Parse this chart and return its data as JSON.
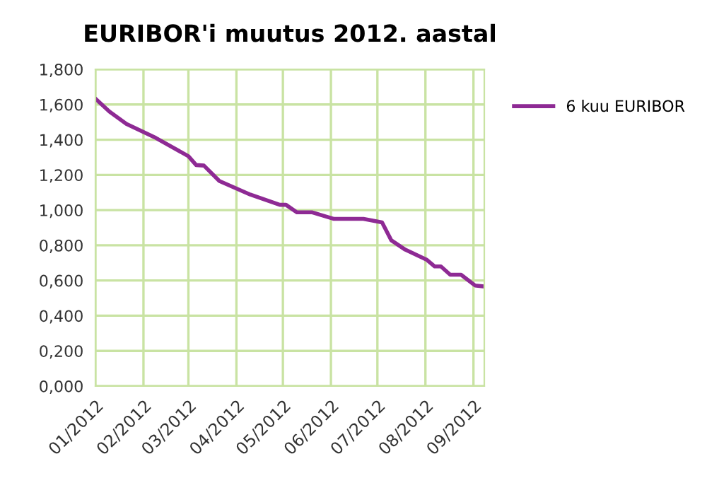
{
  "chart_data": {
    "type": "line",
    "title": "EURIBOR'i muutus 2012. aastal",
    "x": [
      "2012-01-01",
      "2012-01-10",
      "2012-01-21",
      "2012-02-09",
      "2012-03-01",
      "2012-03-06",
      "2012-03-11",
      "2012-03-21",
      "2012-04-10",
      "2012-04-29",
      "2012-05-03",
      "2012-05-10",
      "2012-05-20",
      "2012-06-03",
      "2012-06-22",
      "2012-07-04",
      "2012-07-10",
      "2012-07-19",
      "2012-08-02",
      "2012-08-07",
      "2012-08-11",
      "2012-08-17",
      "2012-08-24",
      "2012-09-02",
      "2012-09-08"
    ],
    "series": [
      {
        "name": "6 kuu EURIBOR",
        "color": "#8e2a94",
        "values": [
          1.633,
          1.56,
          1.49,
          1.41,
          1.306,
          1.256,
          1.253,
          1.165,
          1.088,
          1.03,
          1.03,
          0.987,
          0.987,
          0.95,
          0.95,
          0.93,
          0.828,
          0.775,
          0.717,
          0.68,
          0.68,
          0.633,
          0.633,
          0.572,
          0.566
        ]
      }
    ],
    "xlim": [
      "2012-01-01",
      "2012-09-08"
    ],
    "xticks": [
      {
        "value": "2012-01-01",
        "label": "01/2012"
      },
      {
        "value": "2012-02-01",
        "label": "02/2012"
      },
      {
        "value": "2012-03-01",
        "label": "03/2012"
      },
      {
        "value": "2012-04-01",
        "label": "04/2012"
      },
      {
        "value": "2012-05-01",
        "label": "05/2012"
      },
      {
        "value": "2012-06-01",
        "label": "06/2012"
      },
      {
        "value": "2012-07-01",
        "label": "07/2012"
      },
      {
        "value": "2012-08-01",
        "label": "08/2012"
      },
      {
        "value": "2012-09-01",
        "label": "09/2012"
      }
    ],
    "ylim": [
      0,
      1.8
    ],
    "yticks": [
      {
        "value": 0,
        "label": "0,000"
      },
      {
        "value": 0.2,
        "label": "0,200"
      },
      {
        "value": 0.4,
        "label": "0,400"
      },
      {
        "value": 0.6,
        "label": "0,600"
      },
      {
        "value": 0.8,
        "label": "0,800"
      },
      {
        "value": 1.0,
        "label": "1,000"
      },
      {
        "value": 1.2,
        "label": "1,200"
      },
      {
        "value": 1.4,
        "label": "1,400"
      },
      {
        "value": 1.6,
        "label": "1,600"
      },
      {
        "value": 1.8,
        "label": "1,800"
      }
    ],
    "grid": true,
    "legend": "right",
    "marker": "none",
    "line_style": "solid"
  }
}
